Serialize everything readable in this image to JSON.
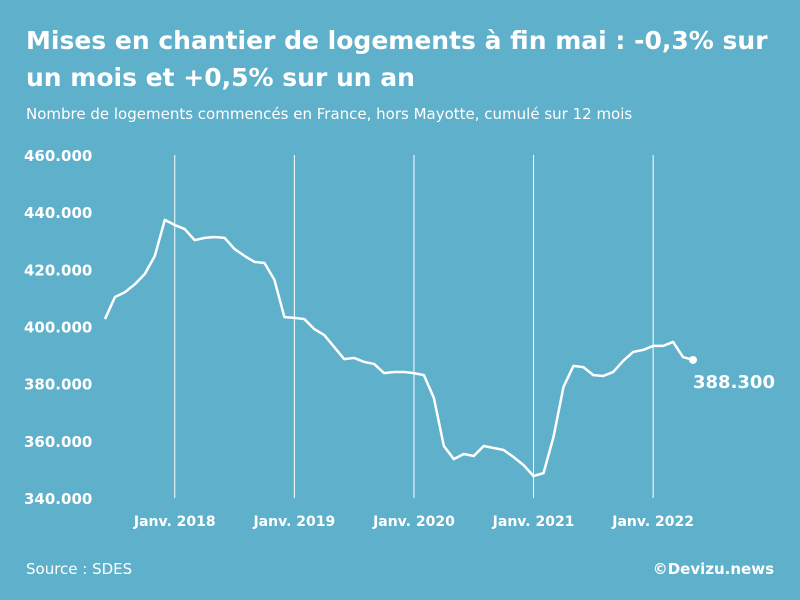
{
  "chart_data": {
    "type": "line",
    "title": "Mises en chantier de logements à fin mai : -0,3% sur un mois et +0,5% sur un an",
    "subtitle": "Nombre de logements commencés en France, hors Mayotte, cumulé sur 12 mois",
    "source": "Source : SDES",
    "credit": "©Devizu.news",
    "x": [
      "2017-06",
      "2017-07",
      "2017-08",
      "2017-09",
      "2017-10",
      "2017-11",
      "2017-12",
      "2018-01",
      "2018-02",
      "2018-03",
      "2018-04",
      "2018-05",
      "2018-06",
      "2018-07",
      "2018-08",
      "2018-09",
      "2018-10",
      "2018-11",
      "2018-12",
      "2019-01",
      "2019-02",
      "2019-03",
      "2019-04",
      "2019-05",
      "2019-06",
      "2019-07",
      "2019-08",
      "2019-09",
      "2019-10",
      "2019-11",
      "2019-12",
      "2020-01",
      "2020-02",
      "2020-03",
      "2020-04",
      "2020-05",
      "2020-06",
      "2020-07",
      "2020-08",
      "2020-09",
      "2020-10",
      "2020-11",
      "2020-12",
      "2021-01",
      "2021-02",
      "2021-03",
      "2021-04",
      "2021-05",
      "2021-06",
      "2021-07",
      "2021-08",
      "2021-09",
      "2021-10",
      "2021-11",
      "2021-12",
      "2022-01",
      "2022-02",
      "2022-03",
      "2022-04",
      "2022-05"
    ],
    "series": [
      {
        "color": "#ffffff",
        "values": [
          402600,
          410300,
          412000,
          414800,
          418400,
          424700,
          437300,
          435500,
          434100,
          430200,
          431000,
          431300,
          431000,
          427100,
          424700,
          422600,
          422200,
          416300,
          403300,
          403000,
          402600,
          399100,
          397000,
          392800,
          388600,
          389000,
          387600,
          386900,
          383700,
          384100,
          384100,
          383700,
          383000,
          375000,
          358200,
          353600,
          355400,
          354700,
          358200,
          357500,
          356800,
          354300,
          351500,
          347700,
          348700,
          361300,
          378800,
          386200,
          385800,
          383000,
          382700,
          384100,
          388000,
          391100,
          391800,
          393200,
          393200,
          394600,
          389300,
          388300
        ],
        "value_labels": [
          null,
          null,
          null,
          null,
          null,
          null,
          null,
          null,
          null,
          null,
          null,
          null,
          null,
          null,
          null,
          null,
          null,
          null,
          null,
          null,
          null,
          null,
          null,
          null,
          null,
          null,
          null,
          null,
          null,
          null,
          null,
          null,
          null,
          null,
          null,
          null,
          null,
          null,
          null,
          null,
          null,
          null,
          null,
          null,
          null,
          null,
          null,
          null,
          null,
          null,
          null,
          null,
          null,
          null,
          null,
          null,
          null,
          null,
          null,
          "388.300"
        ]
      }
    ],
    "ylim": [
      340000,
      460000
    ],
    "yticks": [
      {
        "value": 340000,
        "label": "340.000"
      },
      {
        "value": 360000,
        "label": "360.000"
      },
      {
        "value": 380000,
        "label": "380.000"
      },
      {
        "value": 400000,
        "label": "400.000"
      },
      {
        "value": 420000,
        "label": "420.000"
      },
      {
        "value": 440000,
        "label": "440.000"
      },
      {
        "value": 460000,
        "label": "460.000"
      }
    ],
    "xticks": [
      {
        "value": "2018-01",
        "label": "Janv. 2018"
      },
      {
        "value": "2019-01",
        "label": "Janv. 2019"
      },
      {
        "value": "2020-01",
        "label": "Janv. 2020"
      },
      {
        "value": "2021-01",
        "label": "Janv. 2021"
      },
      {
        "value": "2022-01",
        "label": "Janv. 2022"
      }
    ],
    "grid": true
  }
}
